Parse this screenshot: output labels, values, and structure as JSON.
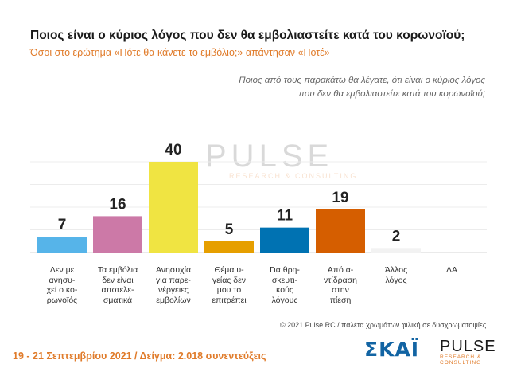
{
  "title": "Ποιος είναι ο κύριος λόγος που δεν θα εμβολιαστείτε κατά του κορωνοϊού;",
  "subtitle": "Όσοι στο ερώτημα «Πότε θα κάνετε το εμβόλιο;» απάντησαν «Ποτέ»",
  "question_line1": "Ποιος από τους παρακάτω θα λέγατε, ότι είναι ο κύριος λόγος",
  "question_line2": "που δεν θα εμβολιαστείτε κατά του κορωνοϊού;",
  "copyright": "© 2021 Pulse RC  /  παλέτα χρωμάτων φιλική σε δυσχρωματοψίες",
  "footer": "19 - 21 Σεπτεμβρίου 2021  /  Δείγμα:  2.018 συνεντεύξεις",
  "logos": {
    "skai": "ΣΚΑΪ",
    "pulse": "PULSE",
    "pulse_sub": "RESEARCH & CONSULTING"
  },
  "watermark": {
    "main": "PULSE",
    "sub": "RESEARCH & CONSULTING"
  },
  "chart_data": {
    "type": "bar",
    "title": "Ποιος είναι ο κύριος λόγος που δεν θα εμβολιαστείτε κατά του κορωνοϊού;",
    "categories": [
      "Δεν με ανησυχεί ο κορωνοϊός",
      "Τα εμβόλια δεν είναι αποτελεσματικά",
      "Ανησυχία για παρενέργειες εμβολίων",
      "Θέμα υγείας δεν μου το επιτρέπει",
      "Για θρησκευτικούς λόγους",
      "Από αντίδραση στην πίεση",
      "Άλλος λόγος",
      "ΔΑ"
    ],
    "category_lines": [
      [
        "Δεν με",
        "ανησυ-",
        "χεί ο κο-",
        "ρωνοϊός"
      ],
      [
        "Τα εμβόλια",
        "δεν είναι",
        "αποτελε-",
        "σματικά"
      ],
      [
        "Ανησυχία",
        "για παρε-",
        "νέργειες",
        "εμβολίων"
      ],
      [
        "Θέμα υ-",
        "γείας δεν",
        "μου το",
        "επιτρέπει"
      ],
      [
        "Για θρη-",
        "σκευτι-",
        "κούς",
        "λόγους"
      ],
      [
        "Από α-",
        "ντίδραση",
        "στην",
        "πίεση"
      ],
      [
        "Άλλος",
        "λόγος"
      ],
      [
        "ΔΑ"
      ]
    ],
    "values": [
      7,
      16,
      40,
      5,
      11,
      19,
      2,
      null
    ],
    "value_labels": [
      "7",
      "16",
      "40",
      "5",
      "11",
      "19",
      "2",
      ""
    ],
    "colors": [
      "#56b4e9",
      "#cc79a7",
      "#f0e442",
      "#e69f00",
      "#0072b2",
      "#d55e00",
      "#f2f2f2",
      "#ffffff"
    ],
    "ylim": [
      0,
      50
    ],
    "grid": true,
    "legend": "none"
  }
}
